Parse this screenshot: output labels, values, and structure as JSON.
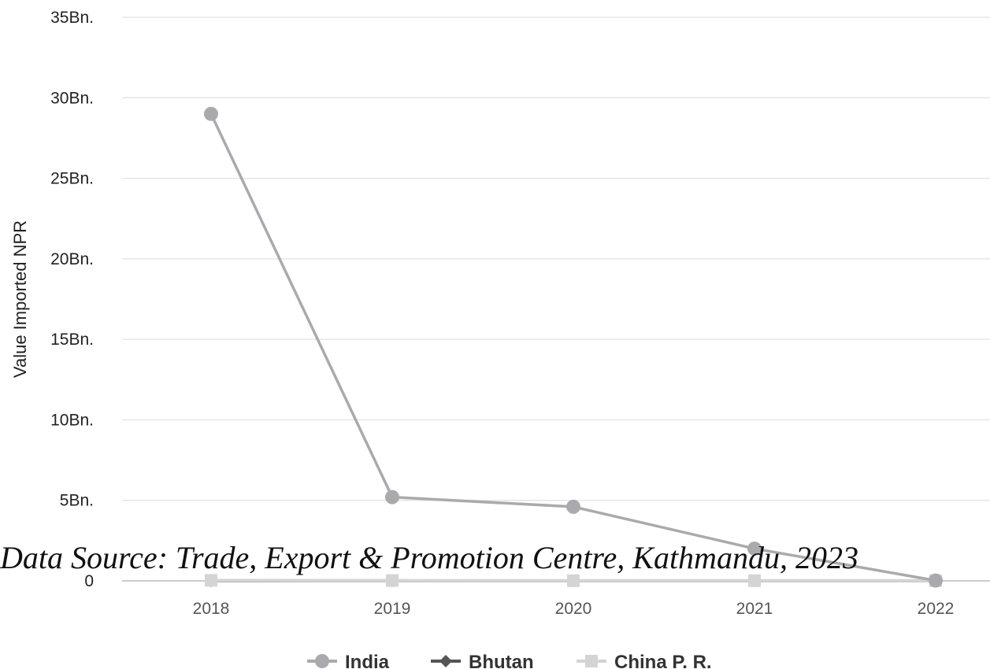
{
  "chart_data": {
    "type": "line",
    "title": "",
    "xlabel": "",
    "ylabel": "Value Imported NPR",
    "x": [
      "2018",
      "2019",
      "2020",
      "2021",
      "2022"
    ],
    "ylim": [
      0,
      35000000000
    ],
    "y_ticks": [
      {
        "value": 0,
        "label": "0"
      },
      {
        "value": 5000000000,
        "label": "5Bn."
      },
      {
        "value": 10000000000,
        "label": "10Bn."
      },
      {
        "value": 15000000000,
        "label": "15Bn."
      },
      {
        "value": 20000000000,
        "label": "20Bn."
      },
      {
        "value": 25000000000,
        "label": "25Bn."
      },
      {
        "value": 30000000000,
        "label": "30Bn."
      },
      {
        "value": 35000000000,
        "label": "35Bn."
      }
    ],
    "grid": true,
    "legend_position": "bottom",
    "series": [
      {
        "name": "India",
        "marker": "circle",
        "color": "#aaaaae",
        "values": [
          29000000000,
          5200000000,
          4600000000,
          2000000000,
          20000000
        ]
      },
      {
        "name": "Bhutan",
        "marker": "diamond",
        "color": "#555555",
        "values": [
          0,
          0,
          0,
          0,
          0
        ]
      },
      {
        "name": "China P. R.",
        "marker": "square",
        "color": "#d4d4d4",
        "values": [
          30000000,
          20000000,
          10000000,
          10000000,
          10000000
        ]
      }
    ],
    "annotation": "Data Source: Trade, Export & Promotion Centre, Kathmandu, 2023"
  }
}
